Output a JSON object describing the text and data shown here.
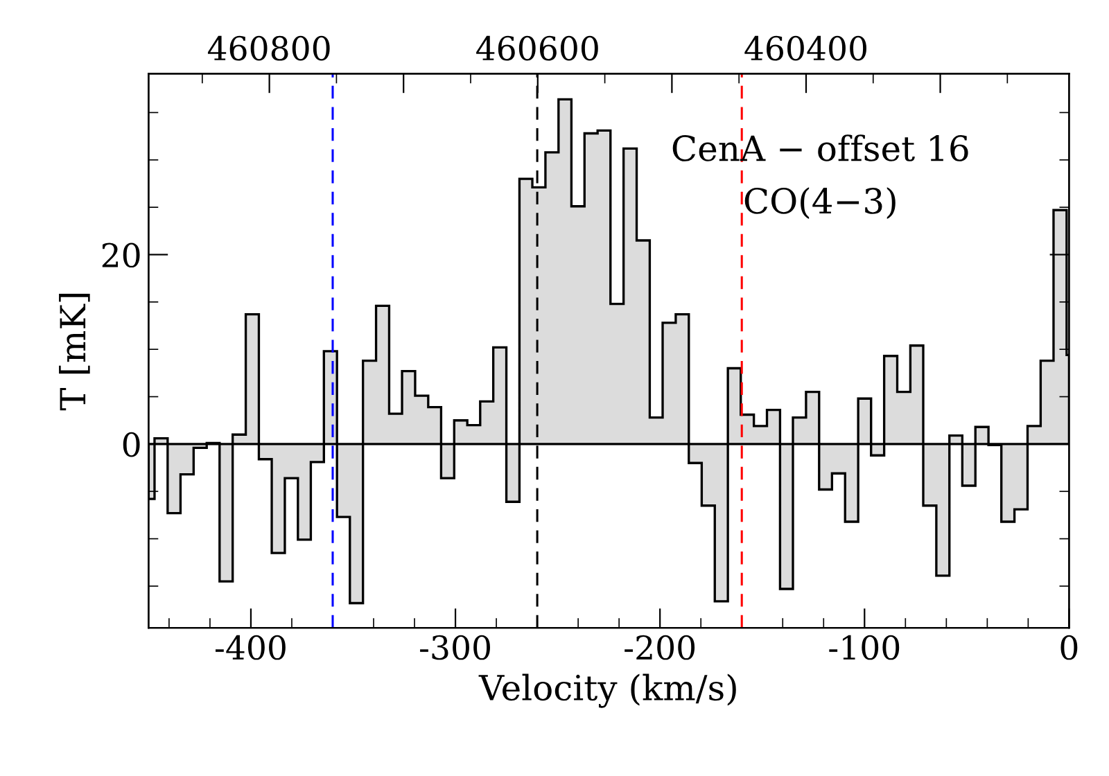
{
  "chart_data": {
    "type": "histogram",
    "xlabel": "Velocity (km/s)",
    "ylabel": "T [mK]",
    "annotations": [
      "CenA − offset 16",
      "CO(4−3)"
    ],
    "bins": [
      -450,
      -447.1,
      -440.7,
      -434.4,
      -428.0,
      -421.6,
      -415.3,
      -408.9,
      -402.5,
      -396.1,
      -389.8,
      -383.4,
      -377.0,
      -370.7,
      -364.3,
      -357.9,
      -351.6,
      -345.2,
      -338.8,
      -332.4,
      -326.1,
      -319.7,
      -313.3,
      -307.0,
      -300.6,
      -294.2,
      -287.9,
      -281.5,
      -275.1,
      -268.7,
      -262.4,
      -256.0,
      -249.6,
      -243.3,
      -236.9,
      -230.5,
      -224.2,
      -217.8,
      -211.4,
      -205.0,
      -198.7,
      -192.3,
      -185.9,
      -179.6,
      -173.2,
      -166.8,
      -160.5,
      -154.1,
      -147.7,
      -141.3,
      -135.0,
      -128.6,
      -122.2,
      -115.9,
      -109.5,
      -103.1,
      -96.8,
      -90.4,
      -84.0,
      -77.6,
      -71.3,
      -64.9,
      -58.5,
      -52.2,
      -45.8,
      -39.4,
      -33.1,
      -26.7,
      -20.3,
      -13.9,
      -7.6,
      -1.2,
      0
    ],
    "series": [
      {
        "color": "#dcdcdc",
        "values": [
          -5.8,
          0.6,
          -7.3,
          -3.2,
          -0.4,
          0.1,
          -14.5,
          1.0,
          13.7,
          -1.6,
          -11.5,
          -3.6,
          -10.1,
          -1.9,
          9.8,
          -7.7,
          -16.8,
          8.8,
          14.6,
          3.2,
          7.7,
          5.1,
          3.9,
          -3.6,
          2.5,
          2.0,
          4.5,
          10.2,
          -6.1,
          28.0,
          27.1,
          30.8,
          36.4,
          25.1,
          32.8,
          33.1,
          14.8,
          31.2,
          21.5,
          2.8,
          12.8,
          13.7,
          -2.0,
          -6.5,
          -16.6,
          8.0,
          3.1,
          1.9,
          3.6,
          -15.3,
          2.8,
          5.5,
          -4.8,
          -3.1,
          -8.2,
          4.8,
          -1.2,
          9.3,
          5.5,
          10.4,
          -6.5,
          -13.9,
          0.9,
          -4.4,
          1.8,
          -0.1,
          -8.2,
          -6.9,
          1.9,
          8.8,
          24.7,
          9.4
        ]
      }
    ],
    "xlim": [
      -450,
      0
    ],
    "xticks": [
      -400,
      -300,
      -200,
      -100,
      0
    ],
    "ylim": [
      -19.4,
      39.1
    ],
    "yticks": [
      0,
      20
    ],
    "x2lim": [
      460890,
      460204
    ],
    "x2ticks": [
      460800,
      {
        "value": 460700,
        "label": null
      },
      460600,
      {
        "value": 460500,
        "label": null
      },
      460400,
      {
        "value": 460300,
        "label": null
      }
    ],
    "ref_lines": [
      {
        "axis": "y",
        "value": 0,
        "color": "#000000",
        "line_style": "solid"
      },
      {
        "axis": "x",
        "value": -360,
        "color": "#0000ff",
        "line_style": "dashed"
      },
      {
        "axis": "x",
        "value": -260,
        "color": "#000000",
        "line_style": "dashed"
      },
      {
        "axis": "x",
        "value": -160,
        "color": "#ff0000",
        "line_style": "dashed"
      }
    ],
    "grid": false
  }
}
